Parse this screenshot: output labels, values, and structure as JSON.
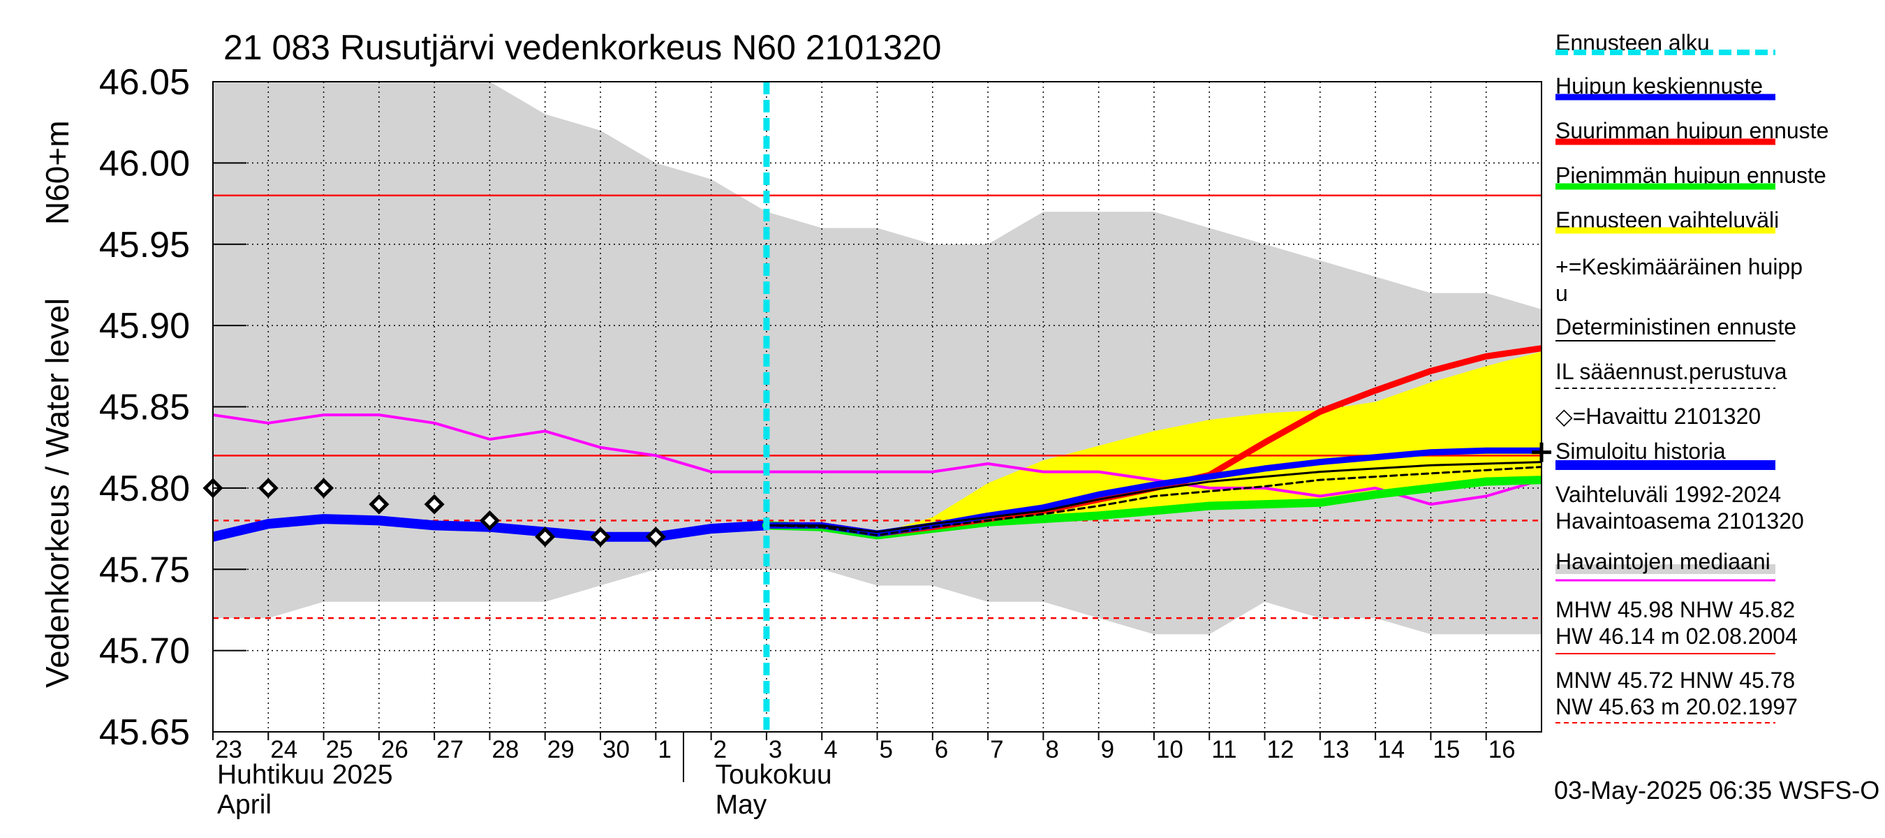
{
  "chart_data": {
    "type": "line",
    "title": "21 083 Rusutjärvi vedenkorkeus N60 2101320",
    "ylabel_left": "Vedenkorkeus / Water level",
    "ylabel_unit": "N60+m",
    "ylim": [
      45.65,
      46.05
    ],
    "yticks": [
      "46.05",
      "46.00",
      "45.95",
      "45.90",
      "45.85",
      "45.80",
      "45.75",
      "45.70",
      "45.65"
    ],
    "ytick_values": [
      46.05,
      46.0,
      45.95,
      45.9,
      45.85,
      45.8,
      45.75,
      45.7,
      45.65
    ],
    "xlim": [
      0,
      24
    ],
    "xticks": [
      "23",
      "24",
      "25",
      "26",
      "27",
      "28",
      "29",
      "30",
      "1",
      "2",
      "3",
      "4",
      "5",
      "6",
      "7",
      "8",
      "9",
      "10",
      "11",
      "12",
      "13",
      "14",
      "15",
      "16"
    ],
    "month_labels": [
      {
        "fi": "Huhtikuu  2025",
        "en": "April",
        "x": 0
      },
      {
        "fi": "Toukokuu",
        "en": "May",
        "x": 9
      }
    ],
    "forecast_start_x": 10.0,
    "horizontal_lines": [
      {
        "name": "MHW",
        "value": 45.98,
        "color": "#ff0000",
        "style": "solid"
      },
      {
        "name": "NHW",
        "value": 45.82,
        "color": "#ff0000",
        "style": "solid"
      },
      {
        "name": "HNW",
        "value": 45.78,
        "color": "#ff0000",
        "style": "dashed"
      },
      {
        "name": "MNW",
        "value": 45.72,
        "color": "#ff0000",
        "style": "dashed"
      }
    ],
    "variation_band": {
      "x": [
        0,
        1,
        2,
        3,
        4,
        5,
        6,
        7,
        8,
        9,
        10,
        11,
        12,
        13,
        14,
        15,
        16,
        17,
        18,
        19,
        20,
        21,
        22,
        23,
        24
      ],
      "upper": [
        46.05,
        46.05,
        46.05,
        46.05,
        46.05,
        46.05,
        46.03,
        46.02,
        46.0,
        45.99,
        45.97,
        45.96,
        45.96,
        45.95,
        45.95,
        45.97,
        45.97,
        45.97,
        45.96,
        45.95,
        45.94,
        45.93,
        45.92,
        45.92,
        45.91
      ],
      "lower": [
        45.72,
        45.72,
        45.73,
        45.73,
        45.73,
        45.73,
        45.73,
        45.74,
        45.75,
        45.75,
        45.75,
        45.75,
        45.74,
        45.74,
        45.73,
        45.73,
        45.72,
        45.71,
        45.71,
        45.73,
        45.72,
        45.72,
        45.71,
        45.71,
        45.71
      ]
    },
    "forecast_range": {
      "x": [
        10,
        11,
        12,
        13,
        14,
        15,
        16,
        17,
        18,
        19,
        20,
        21,
        22,
        23,
        24
      ],
      "upper": [
        45.777,
        45.778,
        45.772,
        45.782,
        45.803,
        45.817,
        45.826,
        45.835,
        45.842,
        45.846,
        45.848,
        45.853,
        45.865,
        45.875,
        45.884
      ],
      "lower": [
        45.777,
        45.776,
        45.77,
        45.773,
        45.777,
        45.779,
        45.782,
        45.785,
        45.788,
        45.79,
        45.791,
        45.795,
        45.8,
        45.803,
        45.806
      ]
    },
    "series": [
      {
        "name": "Simuloitu historia",
        "color": "#0000ff",
        "width": 14,
        "x": [
          0,
          1,
          2,
          3,
          4,
          5,
          6,
          7,
          8,
          9,
          10
        ],
        "y": [
          45.77,
          45.778,
          45.781,
          45.78,
          45.777,
          45.776,
          45.773,
          45.77,
          45.77,
          45.775,
          45.777
        ]
      },
      {
        "name": "Pienimmän huipun ennuste",
        "color": "#00ee00",
        "width": 12,
        "x": [
          10,
          11,
          12,
          13,
          14,
          15,
          16,
          17,
          18,
          19,
          20,
          21,
          22,
          23,
          24
        ],
        "y": [
          45.777,
          45.776,
          45.771,
          45.775,
          45.779,
          45.781,
          45.783,
          45.786,
          45.789,
          45.79,
          45.791,
          45.796,
          45.8,
          45.804,
          45.805
        ]
      },
      {
        "name": "Suurimman huipun ennuste",
        "color": "#ff0000",
        "width": 9,
        "x": [
          10,
          11,
          12,
          13,
          14,
          15,
          16,
          17,
          18,
          19,
          20,
          21,
          22,
          23,
          24
        ],
        "y": [
          45.777,
          45.777,
          45.772,
          45.776,
          45.781,
          45.786,
          45.793,
          45.8,
          45.808,
          45.828,
          45.847,
          45.86,
          45.872,
          45.881,
          45.886
        ]
      },
      {
        "name": "Huipun keskiennuste",
        "color": "#0000ff",
        "width": 9,
        "x": [
          10,
          11,
          12,
          13,
          14,
          15,
          16,
          17,
          18,
          19,
          20,
          21,
          22,
          23,
          24
        ],
        "y": [
          45.777,
          45.777,
          45.772,
          45.777,
          45.783,
          45.788,
          45.796,
          45.802,
          45.807,
          45.812,
          45.816,
          45.819,
          45.822,
          45.823,
          45.823
        ]
      },
      {
        "name": "Deterministinen ennuste",
        "color": "#000000",
        "width": 3,
        "x": [
          10,
          11,
          12,
          13,
          14,
          15,
          16,
          17,
          18,
          19,
          20,
          21,
          22,
          23,
          24
        ],
        "y": [
          45.777,
          45.777,
          45.773,
          45.778,
          45.782,
          45.786,
          45.793,
          45.799,
          45.804,
          45.807,
          45.81,
          45.812,
          45.814,
          45.815,
          45.816
        ]
      },
      {
        "name": "IL sääennust.perustuva",
        "color": "#000000",
        "width": 3,
        "dashed": true,
        "x": [
          10,
          11,
          12,
          13,
          14,
          15,
          16,
          17,
          18,
          19,
          20,
          21,
          22,
          23,
          24
        ],
        "y": [
          45.777,
          45.776,
          45.771,
          45.776,
          45.78,
          45.784,
          45.789,
          45.795,
          45.798,
          45.801,
          45.805,
          45.807,
          45.809,
          45.811,
          45.813
        ]
      },
      {
        "name": "Havaintojen mediaani",
        "color": "#ff00ff",
        "width": 4,
        "x": [
          0,
          1,
          2,
          3,
          4,
          5,
          6,
          7,
          8,
          9,
          10,
          11,
          12,
          13,
          14,
          15,
          16,
          17,
          18,
          19,
          20,
          21,
          22,
          23,
          24
        ],
        "y": [
          45.845,
          45.84,
          45.845,
          45.845,
          45.84,
          45.83,
          45.835,
          45.825,
          45.82,
          45.81,
          45.81,
          45.81,
          45.81,
          45.81,
          45.815,
          45.81,
          45.81,
          45.805,
          45.8,
          45.8,
          45.795,
          45.8,
          45.79,
          45.795,
          45.805
        ]
      }
    ],
    "observed": {
      "name": "Havaittu 2101320",
      "x": [
        0,
        1,
        2,
        3,
        4,
        5,
        6,
        7,
        8
      ],
      "y": [
        45.8,
        45.8,
        45.8,
        45.79,
        45.79,
        45.78,
        45.77,
        45.77,
        45.77
      ]
    },
    "mean_peak_marker": {
      "x": 24,
      "y": 45.822
    },
    "legend": [
      {
        "label": "Ennusteen alku",
        "color": "#00e5ee",
        "style": "dashed",
        "w": 8
      },
      {
        "label": "Huipun keskiennuste",
        "color": "#0000ff",
        "style": "solid",
        "w": 9
      },
      {
        "label": "Suurimman huipun ennuste",
        "color": "#ff0000",
        "style": "solid",
        "w": 9
      },
      {
        "label": "Pienimmän huipun ennuste",
        "color": "#00ee00",
        "style": "solid",
        "w": 9
      },
      {
        "label": "Ennusteen vaihteluväli",
        "color": "#ffff00",
        "style": "solid",
        "w": 9
      },
      {
        "label": "+=Keskimääräinen huipp",
        "label2": "u",
        "color": "",
        "style": "none",
        "w": 0
      },
      {
        "label": "Deterministinen ennuste",
        "color": "#000000",
        "style": "solid",
        "w": 2
      },
      {
        "label": "IL sääennust.perustuva",
        "color": "#000000",
        "style": "dashed",
        "w": 2
      },
      {
        "label": "◇=Havaittu 2101320",
        "color": "",
        "style": "none",
        "w": 0
      },
      {
        "label": "Simuloitu historia",
        "color": "#0000ff",
        "style": "solid",
        "w": 14
      },
      {
        "label": "Vaihteluväli 1992-2024",
        "label2": " Havaintoasema 2101320",
        "color": "#d3d3d3",
        "style": "solid",
        "w": 14
      },
      {
        "label": "Havaintojen mediaani",
        "color": "#ff00ff",
        "style": "solid",
        "w": 3
      },
      {
        "label": "MHW  45.98 NHW  45.82",
        "label2": "HW  46.14 m 02.08.2004",
        "color": "#ff0000",
        "style": "solid",
        "w": 2
      },
      {
        "label": "MNW  45.72 HNW  45.78",
        "label2": "NW  45.63 m 20.02.1997",
        "color": "#ff0000",
        "style": "dashed",
        "w": 2
      }
    ],
    "footer": "03-May-2025 06:35 WSFS-O"
  }
}
